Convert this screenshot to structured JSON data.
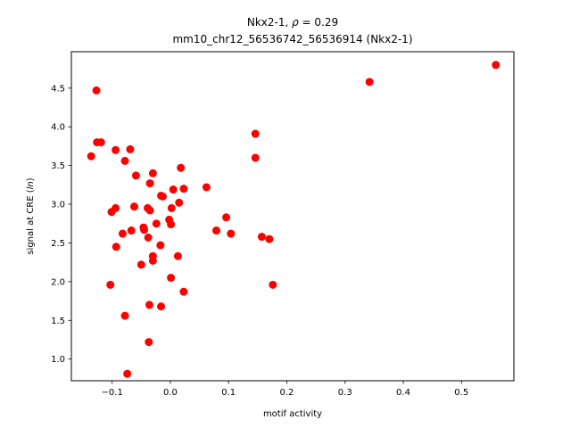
{
  "chart_data": {
    "type": "scatter",
    "title_line1": "Nkx2-1, ρ = 0.29",
    "title_line2": "mm10_chr12_56536742_56536914 (Nkx2-1)",
    "xlabel": "motif activity",
    "ylabel": "signal at CRE (ln)",
    "xlim": [
      -0.17,
      0.59
    ],
    "ylim": [
      0.72,
      4.97
    ],
    "xticks": [
      -0.1,
      0.0,
      0.1,
      0.2,
      0.3,
      0.4,
      0.5
    ],
    "xtick_labels": [
      "−0.1",
      "0.0",
      "0.1",
      "0.2",
      "0.3",
      "0.4",
      "0.5"
    ],
    "yticks": [
      1.0,
      1.5,
      2.0,
      2.5,
      3.0,
      3.5,
      4.0,
      4.5
    ],
    "ytick_labels": [
      "1.0",
      "1.5",
      "2.0",
      "2.5",
      "3.0",
      "3.5",
      "4.0",
      "4.5"
    ],
    "grid": false,
    "marker_color": "#ff0000",
    "points": [
      {
        "x": 0.559,
        "y": 4.8
      },
      {
        "x": 0.342,
        "y": 4.58
      },
      {
        "x": -0.127,
        "y": 4.47
      },
      {
        "x": 0.146,
        "y": 3.91
      },
      {
        "x": -0.126,
        "y": 3.8
      },
      {
        "x": -0.119,
        "y": 3.8
      },
      {
        "x": -0.094,
        "y": 3.7
      },
      {
        "x": -0.069,
        "y": 3.71
      },
      {
        "x": -0.136,
        "y": 3.62
      },
      {
        "x": 0.146,
        "y": 3.6
      },
      {
        "x": -0.078,
        "y": 3.56
      },
      {
        "x": 0.018,
        "y": 3.47
      },
      {
        "x": -0.03,
        "y": 3.4
      },
      {
        "x": -0.059,
        "y": 3.37
      },
      {
        "x": -0.035,
        "y": 3.27
      },
      {
        "x": 0.062,
        "y": 3.22
      },
      {
        "x": 0.005,
        "y": 3.19
      },
      {
        "x": 0.023,
        "y": 3.2
      },
      {
        "x": -0.016,
        "y": 3.11
      },
      {
        "x": -0.013,
        "y": 3.1
      },
      {
        "x": 0.015,
        "y": 3.02
      },
      {
        "x": -0.062,
        "y": 2.97
      },
      {
        "x": -0.094,
        "y": 2.95
      },
      {
        "x": -0.039,
        "y": 2.95
      },
      {
        "x": -0.035,
        "y": 2.92
      },
      {
        "x": 0.002,
        "y": 2.95
      },
      {
        "x": -0.101,
        "y": 2.9
      },
      {
        "x": 0.096,
        "y": 2.83
      },
      {
        "x": -0.002,
        "y": 2.8
      },
      {
        "x": -0.024,
        "y": 2.75
      },
      {
        "x": 0.001,
        "y": 2.74
      },
      {
        "x": -0.046,
        "y": 2.7
      },
      {
        "x": -0.045,
        "y": 2.67
      },
      {
        "x": -0.067,
        "y": 2.66
      },
      {
        "x": 0.079,
        "y": 2.66
      },
      {
        "x": -0.082,
        "y": 2.62
      },
      {
        "x": 0.104,
        "y": 2.62
      },
      {
        "x": 0.157,
        "y": 2.58
      },
      {
        "x": -0.038,
        "y": 2.57
      },
      {
        "x": 0.17,
        "y": 2.55
      },
      {
        "x": -0.017,
        "y": 2.47
      },
      {
        "x": -0.093,
        "y": 2.45
      },
      {
        "x": 0.013,
        "y": 2.33
      },
      {
        "x": -0.03,
        "y": 2.33
      },
      {
        "x": -0.03,
        "y": 2.27
      },
      {
        "x": -0.05,
        "y": 2.22
      },
      {
        "x": 0.001,
        "y": 2.05
      },
      {
        "x": -0.103,
        "y": 1.96
      },
      {
        "x": 0.176,
        "y": 1.96
      },
      {
        "x": 0.023,
        "y": 1.87
      },
      {
        "x": -0.036,
        "y": 1.7
      },
      {
        "x": -0.016,
        "y": 1.68
      },
      {
        "x": -0.078,
        "y": 1.56
      },
      {
        "x": -0.037,
        "y": 1.22
      },
      {
        "x": -0.074,
        "y": 0.81
      }
    ]
  }
}
